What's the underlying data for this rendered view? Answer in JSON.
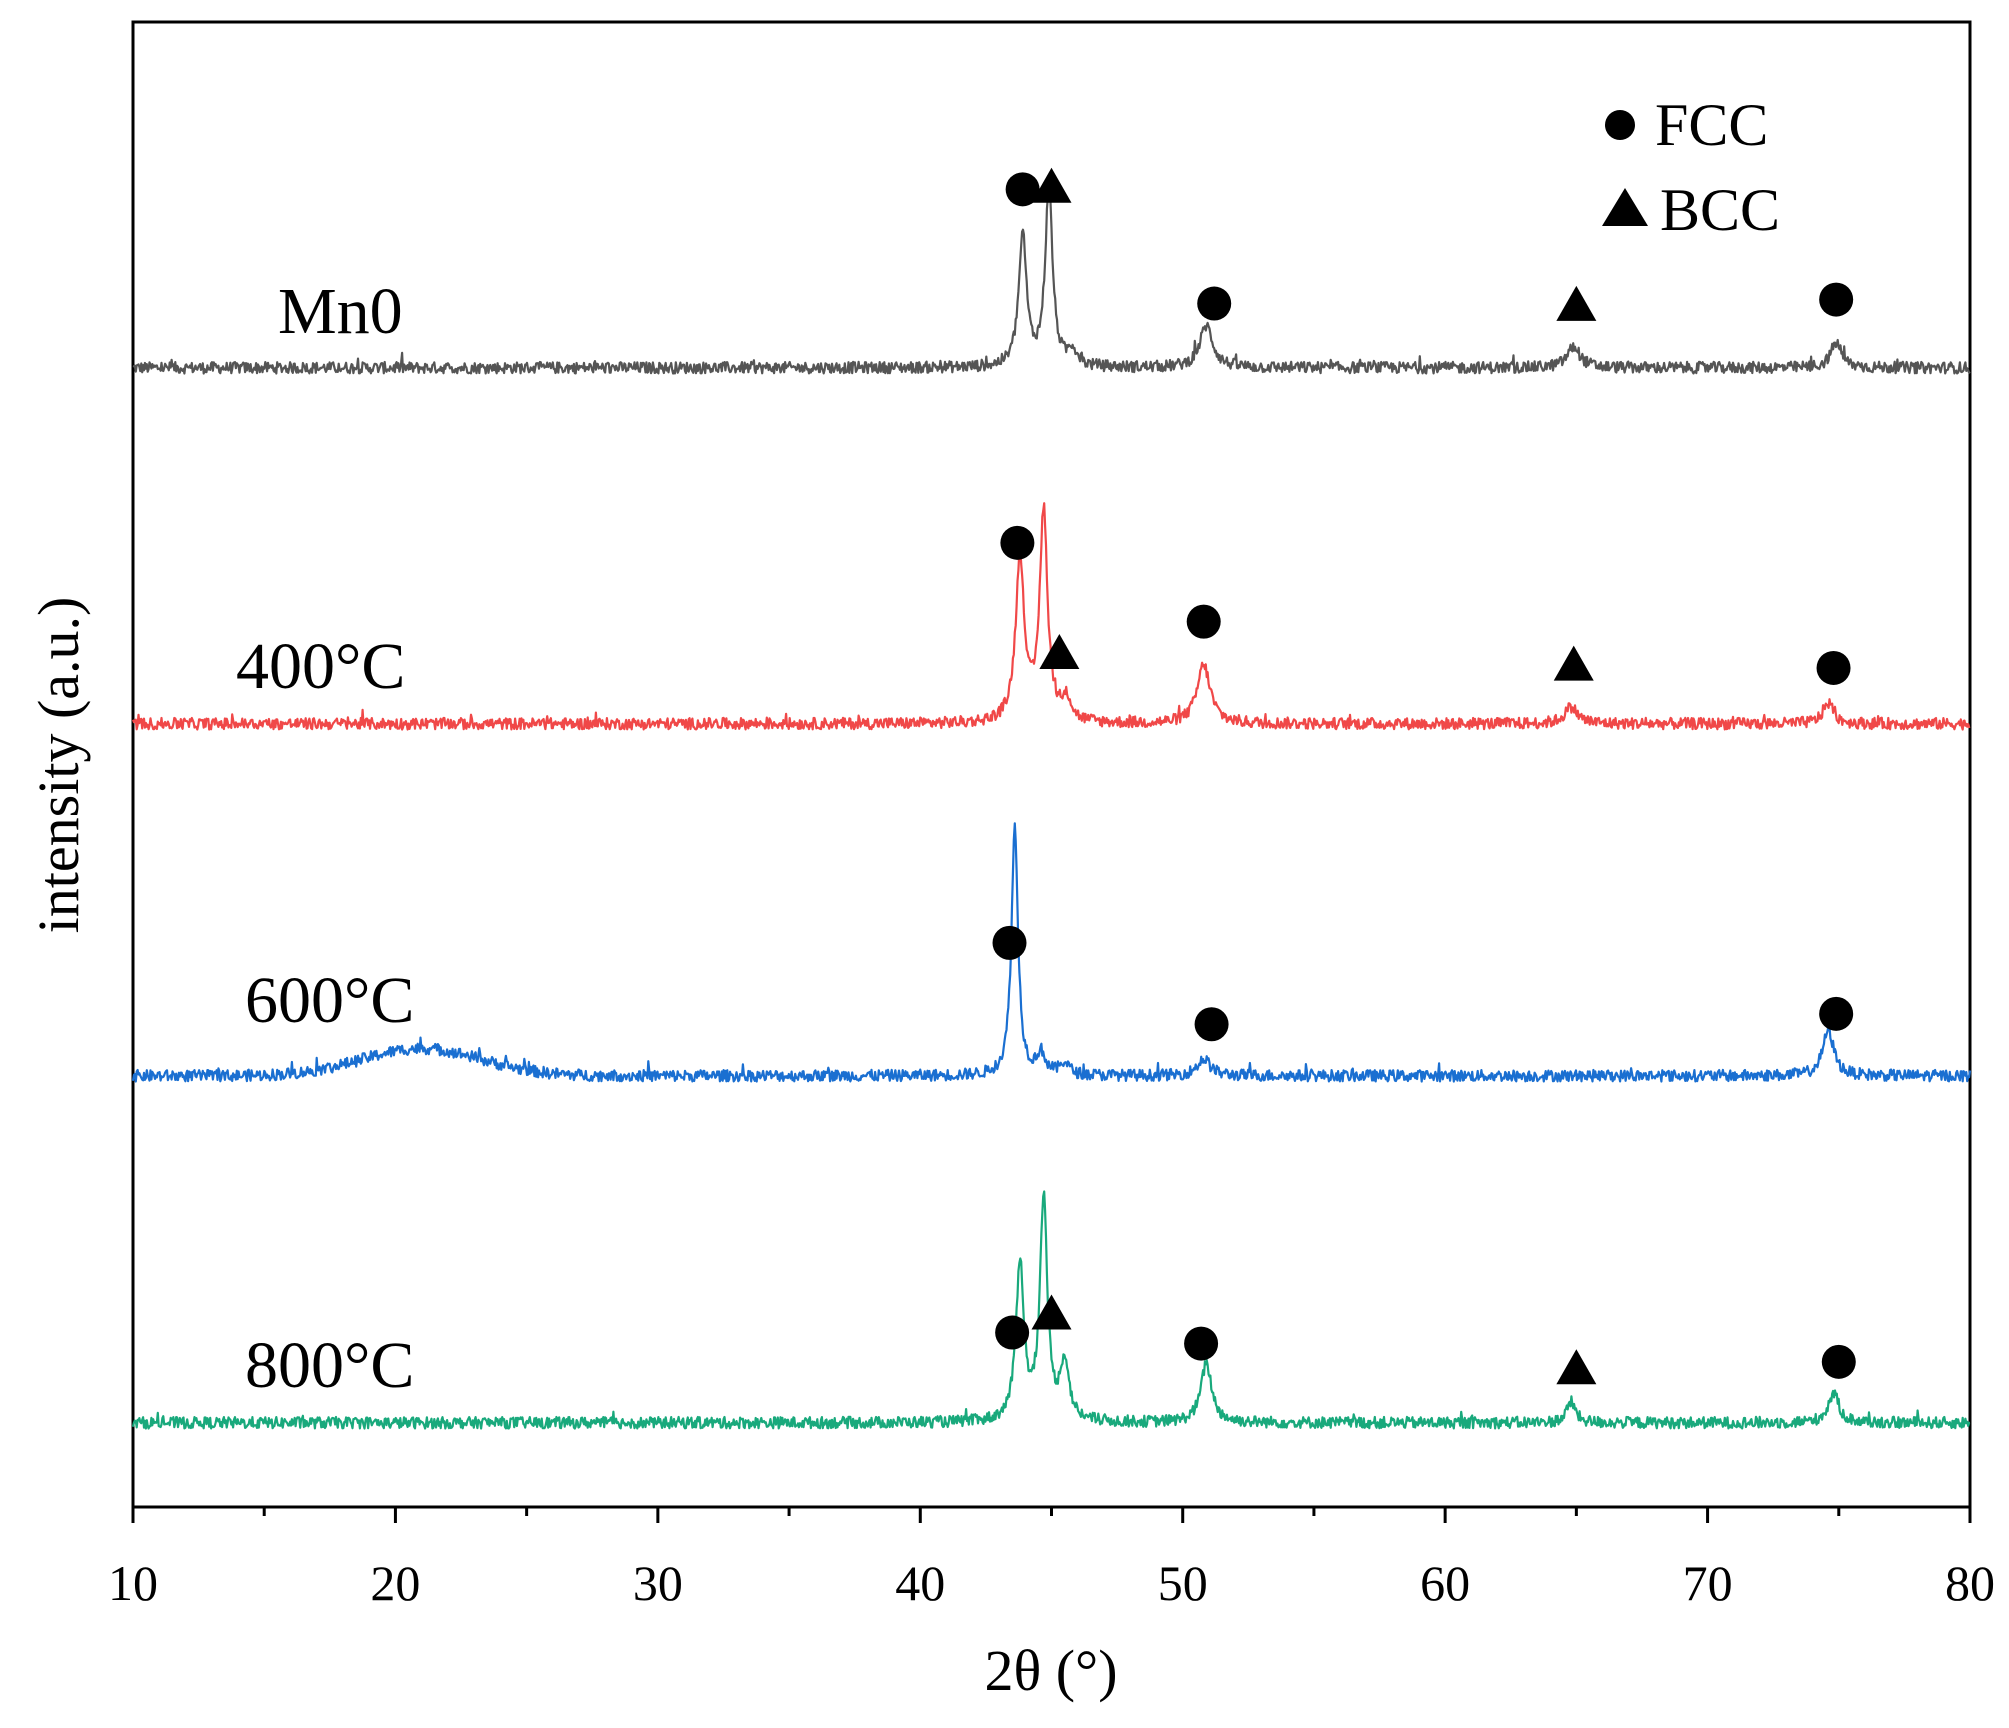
{
  "chart_data": {
    "type": "line",
    "title": "",
    "xlabel": "2θ (°)",
    "ylabel": "intensity (a.u.)",
    "xlim": [
      10,
      80
    ],
    "x_ticks": [
      10,
      20,
      30,
      40,
      50,
      60,
      70,
      80
    ],
    "grid": false,
    "y_tick_labels": false,
    "legend": {
      "position": "top-right",
      "entries": [
        {
          "marker": "circle",
          "label": "FCC"
        },
        {
          "marker": "triangle",
          "label": "BCC"
        }
      ]
    },
    "series": [
      {
        "name": "Mn0",
        "color": "#555555",
        "baseline": 0,
        "peaks": [
          {
            "x": 43.9,
            "height": 0.62,
            "width": 0.18
          },
          {
            "x": 44.9,
            "height": 0.85,
            "width": 0.17
          },
          {
            "x": 45.8,
            "height": 0.08,
            "width": 0.2
          },
          {
            "x": 50.9,
            "height": 0.2,
            "width": 0.3
          },
          {
            "x": 64.9,
            "height": 0.1,
            "width": 0.3
          },
          {
            "x": 74.9,
            "height": 0.12,
            "width": 0.25
          }
        ],
        "markers": [
          {
            "x": 43.9,
            "phase": "FCC"
          },
          {
            "x": 45.0,
            "phase": "BCC"
          },
          {
            "x": 51.2,
            "phase": "FCC"
          },
          {
            "x": 65.0,
            "phase": "BCC"
          },
          {
            "x": 74.9,
            "phase": "FCC"
          }
        ]
      },
      {
        "name": "400°C",
        "color": "#f04848",
        "baseline": 0,
        "peaks": [
          {
            "x": 43.8,
            "height": 0.78,
            "width": 0.2
          },
          {
            "x": 44.7,
            "height": 1.0,
            "width": 0.18
          },
          {
            "x": 45.6,
            "height": 0.1,
            "width": 0.2
          },
          {
            "x": 50.8,
            "height": 0.28,
            "width": 0.3
          },
          {
            "x": 64.8,
            "height": 0.08,
            "width": 0.3
          },
          {
            "x": 74.6,
            "height": 0.1,
            "width": 0.25
          }
        ],
        "markers": [
          {
            "x": 43.7,
            "phase": "FCC"
          },
          {
            "x": 45.3,
            "phase": "BCC"
          },
          {
            "x": 50.8,
            "phase": "FCC"
          },
          {
            "x": 64.9,
            "phase": "BCC"
          },
          {
            "x": 74.8,
            "phase": "FCC"
          }
        ]
      },
      {
        "name": "600°C",
        "color": "#1a6fd1",
        "baseline": 0,
        "hump": {
          "x": 21,
          "height": 0.13,
          "width": 3.2
        },
        "peaks": [
          {
            "x": 43.6,
            "height": 1.18,
            "width": 0.15
          },
          {
            "x": 44.6,
            "height": 0.1,
            "width": 0.2
          },
          {
            "x": 45.5,
            "height": 0.06,
            "width": 0.2
          },
          {
            "x": 50.8,
            "height": 0.08,
            "width": 0.3
          },
          {
            "x": 74.6,
            "height": 0.22,
            "width": 0.25
          }
        ],
        "markers": [
          {
            "x": 43.4,
            "phase": "FCC"
          },
          {
            "x": 51.1,
            "phase": "FCC"
          },
          {
            "x": 74.9,
            "phase": "FCC"
          }
        ]
      },
      {
        "name": "800°C",
        "color": "#19a97c",
        "baseline": 0,
        "peaks": [
          {
            "x": 43.8,
            "height": 0.76,
            "width": 0.18
          },
          {
            "x": 44.7,
            "height": 1.05,
            "width": 0.17
          },
          {
            "x": 45.5,
            "height": 0.28,
            "width": 0.2
          },
          {
            "x": 50.9,
            "height": 0.28,
            "width": 0.25
          },
          {
            "x": 64.8,
            "height": 0.1,
            "width": 0.2
          },
          {
            "x": 74.8,
            "height": 0.14,
            "width": 0.25
          }
        ],
        "markers": [
          {
            "x": 43.5,
            "phase": "FCC"
          },
          {
            "x": 45.0,
            "phase": "BCC"
          },
          {
            "x": 50.7,
            "phase": "FCC"
          },
          {
            "x": 65.0,
            "phase": "BCC"
          },
          {
            "x": 75.0,
            "phase": "FCC"
          }
        ]
      }
    ]
  }
}
